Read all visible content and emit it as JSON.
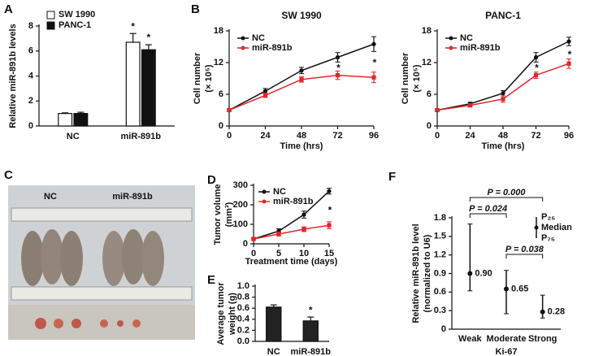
{
  "chart_data": [
    {
      "panel": "A",
      "type": "bar",
      "ylabel": [
        "Relative miR-891b levels"
      ],
      "categories": [
        "NC",
        "miR-891b"
      ],
      "series": [
        {
          "name": "SW 1990",
          "color": "#ffffff",
          "values": [
            1.0,
            6.7
          ],
          "errors": [
            0.05,
            0.7
          ]
        },
        {
          "name": "PANC-1",
          "color": "#111111",
          "values": [
            1.0,
            6.1
          ],
          "errors": [
            0.1,
            0.4
          ]
        }
      ],
      "ylim": [
        0,
        8
      ],
      "yticks": [
        0,
        2,
        4,
        6,
        8
      ],
      "annotations": [
        "*",
        "*"
      ]
    },
    {
      "panel": "B",
      "type": "line",
      "title": "SW 1990",
      "xlabel": "Time (hrs)",
      "ylabel": [
        "Cell number",
        "(× 10⁵)"
      ],
      "x": [
        0,
        24,
        48,
        72,
        96
      ],
      "xlim": [
        0,
        96
      ],
      "xticks": [
        0,
        24,
        48,
        72,
        96
      ],
      "series": [
        {
          "name": "NC",
          "color": "#111111",
          "values": [
            3,
            6.6,
            10.5,
            13,
            15.5
          ],
          "errors": [
            0.2,
            0.5,
            0.6,
            0.9,
            1.4
          ]
        },
        {
          "name": "miR-891b",
          "color": "#e0262a",
          "values": [
            3,
            5.8,
            8.8,
            9.6,
            9.2
          ],
          "errors": [
            0.2,
            0.4,
            0.5,
            0.8,
            1.0
          ]
        }
      ],
      "ylim": [
        0,
        18
      ],
      "yticks": [
        0,
        6,
        12,
        18
      ],
      "annotations": [
        "*",
        "*"
      ]
    },
    {
      "type": "line",
      "title": "PANC-1",
      "xlabel": "Time (hrs)",
      "ylabel": [
        "Cell number",
        "(× 10⁵)"
      ],
      "x": [
        0,
        24,
        48,
        72,
        96
      ],
      "xlim": [
        0,
        96
      ],
      "xticks": [
        0,
        24,
        48,
        72,
        96
      ],
      "series": [
        {
          "name": "NC",
          "color": "#111111",
          "values": [
            3,
            4.2,
            6.2,
            13,
            16
          ],
          "errors": [
            0.2,
            0.3,
            0.5,
            0.9,
            0.8
          ]
        },
        {
          "name": "miR-891b",
          "color": "#e0262a",
          "values": [
            3,
            3.9,
            5.1,
            9.6,
            11.8
          ],
          "errors": [
            0.2,
            0.3,
            0.6,
            0.6,
            0.9
          ]
        }
      ],
      "ylim": [
        0,
        18
      ],
      "yticks": [
        0,
        6,
        12,
        18
      ],
      "annotations": [
        "*",
        "*"
      ]
    },
    {
      "panel": "D",
      "type": "line",
      "xlabel": "Treatment time (days)",
      "ylabel": [
        "Tumor volume",
        "(mm³)"
      ],
      "x": [
        0,
        5,
        10,
        15
      ],
      "xlim": [
        0,
        15
      ],
      "xticks": [
        0,
        5,
        10,
        15
      ],
      "series": [
        {
          "name": "NC",
          "color": "#111111",
          "values": [
            25,
            65,
            150,
            270
          ],
          "errors": [
            5,
            12,
            18,
            15
          ]
        },
        {
          "name": "miR-891b",
          "color": "#e0262a",
          "values": [
            25,
            50,
            75,
            95
          ],
          "errors": [
            5,
            10,
            12,
            18
          ]
        }
      ],
      "ylim": [
        0,
        300
      ],
      "yticks": [
        0,
        100,
        200,
        300
      ],
      "annotations": [
        "*"
      ]
    },
    {
      "panel": "E",
      "type": "bar",
      "ylabel": [
        "Average tumor",
        "weight (g)"
      ],
      "categories": [
        "NC",
        "miR-891b"
      ],
      "color": "#222222",
      "values": [
        0.62,
        0.37
      ],
      "errors": [
        0.04,
        0.07
      ],
      "ylim": [
        0,
        1
      ],
      "yticks": [
        {
          "value": 0,
          "label": "0.0"
        },
        0.2,
        0.4,
        0.6,
        0.8,
        {
          "value": 1,
          "label": "1.0"
        }
      ],
      "annotations": [
        "*"
      ]
    },
    {
      "panel": "F",
      "type": "range",
      "xlabel": "Ki-67",
      "ylabel": [
        "Relative miR-891b level",
        "(normalized to U6)"
      ],
      "categories": [
        "Weak",
        "Moderate",
        "Strong"
      ],
      "medians": [
        0.9,
        0.65,
        0.28
      ],
      "value_labels": [
        "0.90",
        "0.65",
        "0.28"
      ],
      "p25": [
        0.62,
        0.25,
        0.18
      ],
      "p75": [
        1.7,
        0.95,
        0.55
      ],
      "ylim": [
        0,
        1.8
      ],
      "yticks": [
        0,
        0.3,
        0.6,
        0.9,
        1.2,
        1.5,
        1.8
      ],
      "legend": [
        "P₂₅",
        "Median",
        "P₇₅"
      ],
      "annotations": [
        "P = 0.000",
        "P = 0.024",
        "P = 0.038"
      ]
    }
  ],
  "photo": {
    "panel": "C",
    "labels": [
      "NC",
      "miR-891b"
    ]
  }
}
